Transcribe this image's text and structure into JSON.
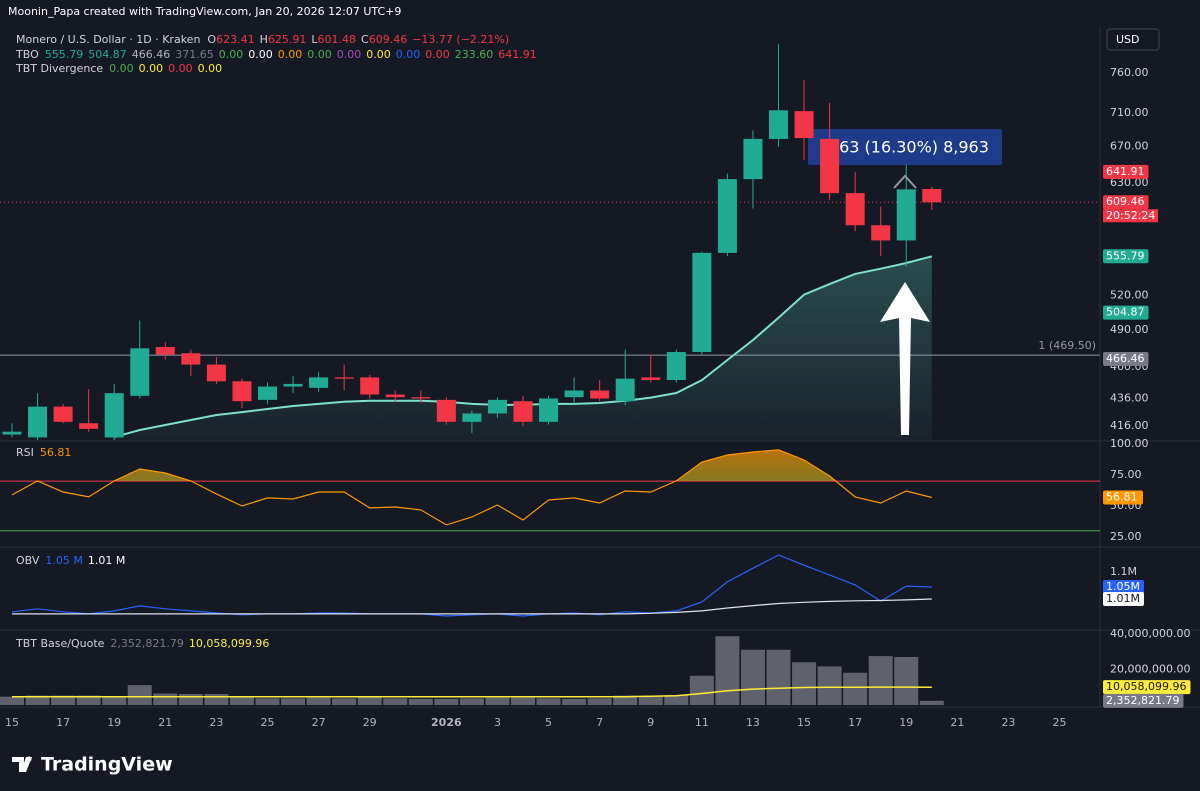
{
  "header": {
    "credit": "Moonin_Papa created with TradingView.com, Jan 20, 2026 12:07 UTC+9",
    "symbol": "Monero / U.S. Dollar · 1D · Kraken",
    "ohlc": [
      {
        "key": "O",
        "value": "623.41"
      },
      {
        "key": "H",
        "value": "625.91"
      },
      {
        "key": "L",
        "value": "601.48"
      },
      {
        "key": "C",
        "value": "609.46"
      }
    ],
    "change": "−13.77 (−2.21%)",
    "currency": "USD",
    "indicators": [
      {
        "name": "TBO",
        "values": [
          {
            "text": "555.79",
            "color": "#22ab94"
          },
          {
            "text": "504.87",
            "color": "#22ab94"
          },
          {
            "text": "466.46",
            "color": "#b2b5be"
          },
          {
            "text": "371.65",
            "color": "#787b86"
          },
          {
            "text": "0.00",
            "color": "#4caf50"
          },
          {
            "text": "0.00",
            "color": "#ffffff"
          },
          {
            "text": "0.00",
            "color": "#ff9800"
          },
          {
            "text": "0.00",
            "color": "#4caf50"
          },
          {
            "text": "0.00",
            "color": "#ab47bc"
          },
          {
            "text": "0.00",
            "color": "#ffeb3b"
          },
          {
            "text": "0.00",
            "color": "#2962ff"
          },
          {
            "text": "0.00",
            "color": "#f23645"
          },
          {
            "text": "233.60",
            "color": "#4caf50"
          },
          {
            "text": "641.91",
            "color": "#f23645"
          }
        ]
      },
      {
        "name": "TBT Divergence",
        "values": [
          {
            "text": "0.00",
            "color": "#4caf50"
          },
          {
            "text": "0.00",
            "color": "#ffeb3b"
          },
          {
            "text": "0.00",
            "color": "#f23645"
          },
          {
            "text": "0.00",
            "color": "#ffeb3b"
          }
        ]
      }
    ]
  },
  "chart_data": [
    {
      "type": "candlestick",
      "log": true,
      "categories": [
        "15",
        null,
        "17",
        null,
        "19",
        null,
        "21",
        null,
        "23",
        null,
        "25",
        null,
        "27",
        null,
        "29",
        null,
        null,
        "2026",
        null,
        "3",
        null,
        "5",
        null,
        "7",
        null,
        "9",
        null,
        "11",
        null,
        "13",
        null,
        "15",
        null,
        "17",
        null,
        "19",
        null,
        "21",
        null,
        "23",
        null,
        "25",
        null
      ],
      "open": [
        410,
        408,
        430,
        418,
        408,
        438,
        476,
        471,
        462,
        449,
        435,
        445,
        444,
        452,
        452,
        439,
        437,
        435,
        419,
        425,
        434,
        419,
        437,
        442,
        434,
        452,
        450,
        472,
        559,
        634,
        679,
        712,
        679,
        619,
        586,
        571,
        623.41,
        null,
        null,
        null,
        null,
        null,
        null
      ],
      "high": [
        418,
        440,
        432,
        443,
        447,
        498,
        480,
        474,
        468,
        451,
        448,
        453,
        456,
        462,
        454,
        442,
        442,
        437,
        427,
        437,
        438,
        438,
        452,
        450,
        474,
        470,
        474,
        560,
        640,
        689,
        798,
        751,
        722,
        642,
        605,
        650,
        625.91,
        null,
        null,
        null,
        null,
        null,
        null
      ],
      "low": [
        408,
        406,
        418,
        412,
        406,
        436,
        466,
        453,
        447,
        429,
        432,
        440,
        441,
        442,
        436,
        434,
        433,
        417,
        411,
        422,
        416,
        417,
        433,
        434,
        431,
        448,
        448,
        470,
        556,
        603,
        670,
        655,
        612,
        580,
        556,
        546,
        601.48,
        null,
        null,
        null,
        null,
        null,
        null
      ],
      "close": [
        412,
        430,
        419,
        414,
        440,
        475,
        470,
        462,
        449,
        434,
        445,
        447,
        452,
        451,
        439,
        437,
        436,
        419,
        425,
        435,
        419,
        436,
        442,
        436,
        451,
        450,
        472,
        559,
        634,
        679,
        713,
        680,
        619,
        586,
        571,
        623,
        609.46,
        null,
        null,
        null,
        null,
        null,
        null
      ],
      "up_color": "#22ab94",
      "down_color": "#f23645",
      "series": [
        {
          "name": "TBO",
          "color": "#7fe0cc",
          "values": [
            null,
            null,
            null,
            null,
            408.3,
            413.2,
            416.7,
            420.3,
            423.9,
            426.0,
            428.3,
            430.5,
            432.0,
            433.6,
            434.3,
            434.3,
            434.3,
            433.6,
            432.0,
            431.3,
            431.3,
            432.0,
            432.0,
            432.7,
            434.3,
            436.7,
            440.1,
            449.9,
            465.6,
            481.8,
            500.5,
            520.6,
            530.0,
            539.3,
            544.1,
            549.4,
            555.79,
            null,
            null,
            null,
            null,
            null,
            null
          ]
        }
      ],
      "ylim": [
        406.2,
        820.5
      ],
      "yticks": [
        {
          "value": 760,
          "label": "760.00"
        },
        {
          "value": 710,
          "label": "710.00"
        },
        {
          "value": 670,
          "label": "670.00"
        },
        {
          "value": 630,
          "label": "630.00"
        },
        {
          "value": 520,
          "label": "520.00"
        },
        {
          "value": 490,
          "label": "490.00"
        },
        {
          "value": 460,
          "label": "460.00"
        },
        {
          "value": 436,
          "label": "436.00"
        },
        {
          "value": 416,
          "label": "416.00"
        }
      ],
      "hline": {
        "value": 469.5,
        "label": "1 (469.50)"
      },
      "last_price": 609.46,
      "tags": [
        {
          "value": 641.91,
          "label": "641.91",
          "color": "#f23645"
        },
        {
          "value": 609.46,
          "label": "609.46",
          "countdown": "20:52:24",
          "color": "#f23645"
        },
        {
          "value": 555.79,
          "label": "555.79",
          "color": "#22ab94"
        },
        {
          "value": 504.87,
          "label": "504.87",
          "color": "#22ab94"
        },
        {
          "value": 466.46,
          "label": "466.46",
          "color": "#787b86"
        }
      ],
      "annotation": ".63 (16.30%) 8,963"
    },
    {
      "type": "line",
      "title": "RSI",
      "series": [
        {
          "name": "RSI",
          "color": "#ff9800",
          "values": [
            58.9,
            70.2,
            61.3,
            57.3,
            70.2,
            79.8,
            76.6,
            70.2,
            59.7,
            50.0,
            56.5,
            55.6,
            61.3,
            61.3,
            48.4,
            49.2,
            46.8,
            34.7,
            41.1,
            50.8,
            38.7,
            54.8,
            56.5,
            52.4,
            62.1,
            61.3,
            70.2,
            85.5,
            91.1,
            93.5,
            95.2,
            87.1,
            74.2,
            57.3,
            52.4,
            62.1,
            56.81,
            null,
            null,
            null,
            null,
            null,
            null
          ]
        }
      ],
      "levels": [
        {
          "value": 70,
          "color": "#f23645"
        },
        {
          "value": 30,
          "color": "#4caf50"
        }
      ],
      "ylim": [
        17.7,
        102.4
      ],
      "yticks": [
        {
          "value": 100,
          "label": "100.00"
        },
        {
          "value": 75,
          "label": "75.00"
        },
        {
          "value": 50,
          "label": "50.00"
        },
        {
          "value": 25,
          "label": "25.00"
        }
      ],
      "tags": [
        {
          "value": 56.81,
          "label": "56.81",
          "color": "#ff9800"
        }
      ],
      "legend": [
        0
      ]
    },
    {
      "type": "line",
      "title": "OBV",
      "series": [
        {
          "name": "OBV",
          "color": "#2962ff",
          "values": [
            967000,
            977000,
            967000,
            960000,
            970000,
            987000,
            977000,
            970000,
            963000,
            957000,
            960000,
            960000,
            963000,
            963000,
            960000,
            960000,
            960000,
            953000,
            957000,
            960000,
            953000,
            960000,
            963000,
            957000,
            967000,
            963000,
            970000,
            1000000,
            1067000,
            1113000,
            1157000,
            1123000,
            1090000,
            1057000,
            1003000,
            1053000,
            1050000,
            null,
            null,
            null,
            null,
            null,
            null
          ]
        },
        {
          "name": "OBV MA",
          "color": "#e0e3eb",
          "values": [
            960000,
            960000,
            960000,
            960000,
            960000,
            960000,
            960000,
            960000,
            960000,
            960000,
            960000,
            960000,
            960000,
            960000,
            960000,
            960000,
            960000,
            960000,
            960000,
            960000,
            960000,
            960000,
            960000,
            960000,
            960000,
            962000,
            965000,
            970000,
            980000,
            988000,
            995000,
            999000,
            1002000,
            1004000,
            1005000,
            1007000,
            1010000,
            null,
            null,
            null,
            null,
            null,
            null
          ]
        }
      ],
      "ylim": [
        913000,
        1177000
      ],
      "yticks": [
        {
          "value": 1100000,
          "label": "1.1M"
        }
      ],
      "tags": [
        {
          "value": 1050000,
          "label": "1.05M",
          "color": "#2962ff"
        },
        {
          "value": 1010000,
          "label": "1.01M",
          "color": "#ffffff"
        }
      ],
      "legend_texts": [
        {
          "text": "1.05 M",
          "color": "#2962ff"
        },
        {
          "text": "1.01 M",
          "color": "#ffffff"
        }
      ]
    },
    {
      "type": "bar",
      "title": "TBT Base/Quote",
      "values": [
        4700000,
        5300000,
        5300000,
        5300000,
        4400000,
        11200000,
        6500000,
        6200000,
        6200000,
        4400000,
        3800000,
        3800000,
        4100000,
        3800000,
        5000000,
        3800000,
        3500000,
        3500000,
        3800000,
        4100000,
        4100000,
        3800000,
        3500000,
        3800000,
        5300000,
        4700000,
        5600000,
        16500000,
        38800000,
        31200000,
        31200000,
        24100000,
        21800000,
        18200000,
        27600000,
        27100000,
        2352821.79,
        null,
        null,
        null,
        null,
        null,
        null
      ],
      "color": "#787b86",
      "series": [
        {
          "name": "MA",
          "color": "#ffeb3b",
          "values": [
            4700000,
            4700000,
            4700000,
            4700000,
            4700000,
            4700000,
            4700000,
            4700000,
            4700000,
            4700000,
            4700000,
            4700000,
            4700000,
            4700000,
            4700000,
            4700000,
            4700000,
            4700000,
            4700000,
            4700000,
            4700000,
            4700000,
            4700000,
            4700000,
            4700000,
            4900000,
            5200000,
            6500000,
            8000000,
            9000000,
            9500000,
            9900000,
            10000000,
            10000000,
            10100000,
            10100000,
            10058099.96,
            null,
            null,
            null,
            null,
            null,
            null
          ]
        }
      ],
      "ylim": [
        0,
        41200000
      ],
      "yticks": [
        {
          "value": 40000000,
          "label": "40,000,000.00"
        },
        {
          "value": 20000000,
          "label": "20,000,000.00"
        }
      ],
      "tags": [
        {
          "value": 10058099.96,
          "label": "10,058,099.96",
          "color": "#ffeb3b"
        },
        {
          "value": 2352821.79,
          "label": "2,352,821.79",
          "color": "#787b86"
        }
      ],
      "legend": [
        1,
        0
      ]
    }
  ],
  "footer": {
    "brand": "TradingView"
  }
}
